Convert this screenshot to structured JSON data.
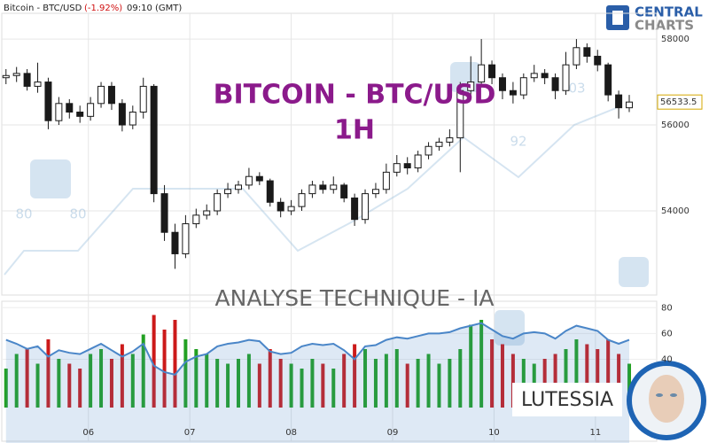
{
  "header": {
    "instrument": "Bitcoin - BTC/USD",
    "change": "(-1.92%)",
    "time": "09:10 (GMT)"
  },
  "logo": {
    "line1": "CENTRAL",
    "line2": "CHARTS"
  },
  "watermark": {
    "labels": [
      "80",
      "80",
      "92",
      "03"
    ]
  },
  "brand": "LUTESSIA",
  "chart_data": [
    {
      "type": "candlestick",
      "title": "BITCOIN - BTC/USD",
      "subtitle": "1H",
      "x": [
        1,
        3.5,
        6,
        8.5,
        11,
        13.5,
        16,
        18.5,
        21,
        23.5,
        26,
        28.5,
        31,
        33.5,
        36,
        38.5,
        41,
        43.5,
        46,
        48.5,
        51,
        53.5,
        56,
        58.5,
        61,
        63.5,
        66,
        68.5,
        71,
        73.5,
        76,
        78.5,
        81,
        83.5,
        86,
        88.5,
        91,
        93.5,
        96,
        98.5,
        101,
        103.5,
        106,
        108.5,
        111,
        113.5,
        116,
        118.5,
        121,
        123.5,
        126,
        128.5,
        131,
        133.5,
        136,
        138.5,
        141,
        143.5,
        146,
        148.5
      ],
      "open": [
        57100,
        57150,
        57200,
        56900,
        57000,
        56100,
        56500,
        56300,
        56200,
        56500,
        56900,
        56500,
        56000,
        56300,
        56900,
        54400,
        53500,
        53000,
        53700,
        53900,
        54000,
        54400,
        54500,
        54600,
        54800,
        54700,
        54200,
        54000,
        54100,
        54400,
        54600,
        54500,
        54600,
        54300,
        53800,
        54400,
        54500,
        54900,
        55100,
        55000,
        55300,
        55500,
        55600,
        55700,
        56800,
        57000,
        57400,
        57100,
        56800,
        56700,
        57100,
        57200,
        57100,
        56800,
        57400,
        57800,
        57600,
        57400,
        56700,
        56400
      ],
      "high": [
        57300,
        57350,
        57300,
        57450,
        57100,
        56650,
        56600,
        56450,
        56650,
        57000,
        57000,
        56600,
        56450,
        57100,
        56950,
        54600,
        53700,
        53900,
        54050,
        54150,
        54500,
        54650,
        54700,
        55000,
        54900,
        54750,
        54300,
        54250,
        54500,
        54700,
        54700,
        54800,
        54650,
        54400,
        54500,
        54650,
        55100,
        55300,
        55250,
        55400,
        55600,
        55700,
        55900,
        57000,
        57600,
        58000,
        57500,
        57200,
        57000,
        57200,
        57400,
        57300,
        57200,
        57700,
        58000,
        57900,
        57750,
        57450,
        56800,
        56700
      ],
      "low": [
        56950,
        57000,
        56800,
        56750,
        55900,
        56000,
        56150,
        56050,
        56100,
        56400,
        56350,
        55850,
        55900,
        56150,
        54200,
        53300,
        52650,
        52900,
        53600,
        53800,
        53900,
        54300,
        54400,
        54500,
        54600,
        54100,
        53850,
        53900,
        54000,
        54300,
        54400,
        54400,
        54200,
        53650,
        53700,
        54300,
        54400,
        54800,
        54850,
        54900,
        55200,
        55400,
        55500,
        54900,
        56600,
        56900,
        56950,
        56600,
        56500,
        56600,
        57000,
        56950,
        56600,
        56700,
        57300,
        57450,
        57250,
        56550,
        56150,
        56300
      ],
      "close": [
        57150,
        57200,
        56900,
        57000,
        56100,
        56500,
        56300,
        56200,
        56500,
        56900,
        56500,
        56000,
        56300,
        56900,
        54400,
        53500,
        53000,
        53700,
        53900,
        54000,
        54400,
        54500,
        54600,
        54800,
        54700,
        54200,
        54000,
        54100,
        54400,
        54600,
        54500,
        54600,
        54300,
        53800,
        54400,
        54500,
        54900,
        55100,
        55000,
        55300,
        55500,
        55600,
        55700,
        56800,
        57000,
        57400,
        57100,
        56800,
        56700,
        57100,
        57200,
        57100,
        56800,
        57400,
        57800,
        57600,
        57400,
        56700,
        56400,
        56533.5
      ],
      "xlim": [
        0,
        155
      ],
      "xticks": [
        {
          "value": 20.5,
          "label": "06"
        },
        {
          "value": 44.5,
          "label": "07"
        },
        {
          "value": 68.5,
          "label": "08"
        },
        {
          "value": 92.5,
          "label": "09"
        },
        {
          "value": 116.5,
          "label": "10"
        },
        {
          "value": 140.5,
          "label": "11"
        }
      ],
      "ylim": [
        52040,
        58600
      ],
      "yticks": [
        54000,
        56000,
        58000
      ],
      "grid": true,
      "up_color": "#ffffff",
      "down_color": "#1a1a1a",
      "title_color": "#8b1a8b"
    },
    {
      "type": "indicator",
      "title": "ANALYSE TECHNIQUE - IA",
      "x": [
        1,
        3.5,
        6,
        8.5,
        11,
        13.5,
        16,
        18.5,
        21,
        23.5,
        26,
        28.5,
        31,
        33.5,
        36,
        38.5,
        41,
        43.5,
        46,
        48.5,
        51,
        53.5,
        56,
        58.5,
        61,
        63.5,
        66,
        68.5,
        71,
        73.5,
        76,
        78.5,
        81,
        83.5,
        86,
        88.5,
        91,
        93.5,
        96,
        98.5,
        101,
        103.5,
        106,
        108.5,
        111,
        113.5,
        116,
        118.5,
        121,
        123.5,
        126,
        128.5,
        131,
        133.5,
        136,
        138.5,
        141,
        143.5,
        146,
        148.5
      ],
      "values": [
        55,
        52,
        48,
        50,
        42,
        47,
        45,
        44,
        48,
        52,
        47,
        42,
        46,
        52,
        35,
        30,
        28,
        38,
        42,
        44,
        50,
        52,
        53,
        55,
        54,
        46,
        44,
        45,
        50,
        52,
        51,
        52,
        47,
        40,
        50,
        51,
        55,
        57,
        56,
        58,
        60,
        60,
        61,
        64,
        66,
        68,
        63,
        58,
        56,
        60,
        61,
        60,
        56,
        62,
        66,
        64,
        62,
        55,
        52,
        55
      ],
      "volume": [
        40,
        55,
        60,
        45,
        70,
        50,
        45,
        40,
        55,
        60,
        50,
        65,
        55,
        75,
        95,
        80,
        90,
        70,
        60,
        55,
        50,
        45,
        50,
        55,
        45,
        60,
        50,
        45,
        40,
        50,
        45,
        40,
        55,
        65,
        60,
        50,
        55,
        60,
        45,
        50,
        55,
        45,
        50,
        60,
        85,
        90,
        70,
        65,
        55,
        50,
        45,
        50,
        55,
        60,
        70,
        65,
        60,
        70,
        55,
        45
      ],
      "volume_lim": [
        0,
        100
      ],
      "xlim": [
        0,
        155
      ],
      "ylim": [
        -25,
        85
      ],
      "yticks": [
        40,
        60,
        80
      ],
      "line_color": "#4a86c8",
      "up_color": "#22a022",
      "down_color": "#cc1a1a"
    }
  ]
}
